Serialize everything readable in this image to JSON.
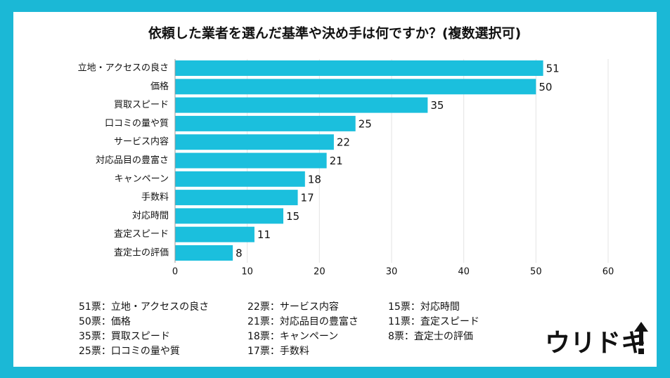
{
  "chart_data": {
    "type": "barh",
    "title": "依頼した業者を選んだ基準や決め手は何ですか？(複数選択可)",
    "categories": [
      "立地・アクセスの良さ",
      "価格",
      "買取スピード",
      "口コミの量や質",
      "サービス内容",
      "対応品目の豊富さ",
      "キャンペーン",
      "手数料",
      "対応時間",
      "査定スピード",
      "査定士の評価"
    ],
    "values": [
      51,
      50,
      35,
      25,
      22,
      21,
      18,
      17,
      15,
      11,
      8
    ],
    "color": "#1bbfdd",
    "xlim": [
      0,
      60
    ],
    "xticks": [
      0,
      10,
      20,
      30,
      40,
      50,
      60
    ],
    "grid": true,
    "notes": [
      "51票：立地・アクセスの良さ",
      "50票：価格",
      "35票：買取スピード",
      "25票：口コミの量や質",
      "22票：サービス内容",
      "21票：対応品目の豊富さ",
      "18票：キャンペーン",
      "17票：手数料",
      "15票：対応時間",
      "11票：査定スピード",
      "8票：査定士の評価"
    ],
    "logo": "ウリドキ"
  }
}
